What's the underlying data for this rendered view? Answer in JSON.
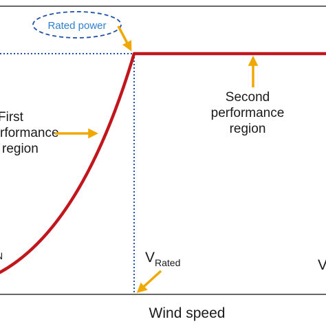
{
  "x_axis_label": "Wind speed",
  "rated_power_label": "Rated power",
  "region1_label": [
    "First",
    "rformance",
    "region"
  ],
  "region2_label": [
    "Second",
    "performance",
    "region"
  ],
  "v_rated": {
    "main": "V",
    "sub": "Rated"
  },
  "v_cutin_fragment": "N",
  "v_cutout_fragment": "V",
  "colors": {
    "curve": "#c0161c",
    "arrow": "#f0a800",
    "guide": "#1f4fa8",
    "rated_power_text": "#2f7fd0",
    "axis": "#333333"
  }
}
